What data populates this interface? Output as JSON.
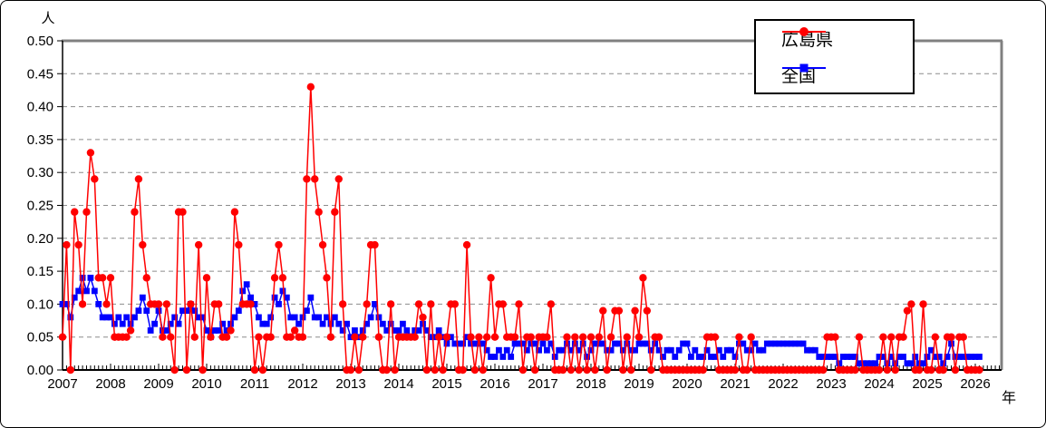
{
  "figure": {
    "y_axis_title": "人",
    "x_axis_title": "年",
    "y_ticks": [
      "0.00",
      "0.05",
      "0.10",
      "0.15",
      "0.20",
      "0.25",
      "0.30",
      "0.35",
      "0.40",
      "0.45",
      "0.50"
    ],
    "x_ticks": [
      "2007",
      "2008",
      "2009",
      "2010",
      "2011",
      "2012",
      "2013",
      "2014",
      "2015",
      "2016",
      "2017",
      "2018",
      "2019",
      "2020",
      "2021",
      "2022",
      "2023",
      "2024",
      "2025",
      "2026"
    ]
  },
  "legend": {
    "entries": [
      {
        "label": "広島県",
        "color": "#ff0000",
        "marker": "circle"
      },
      {
        "label": "全国",
        "color": "#0000ff",
        "marker": "square"
      }
    ]
  },
  "colors": {
    "hiroshima": "#ff0000",
    "national": "#0000ff",
    "grid": "#8c8c8c",
    "frame_gray": "#808080",
    "axis_black": "#000000"
  },
  "chart_data": {
    "type": "line",
    "title": "",
    "ylabel": "人",
    "xlabel": "年",
    "ylim": [
      0,
      0.5
    ],
    "y_tick_interval": 0.05,
    "grid": "horizontal-dashed",
    "legend_position": "top-right",
    "frequency": "monthly",
    "start": "2007-01",
    "end": "2026-02",
    "x_tick_years": [
      2007,
      2008,
      2009,
      2010,
      2011,
      2012,
      2013,
      2014,
      2015,
      2016,
      2017,
      2018,
      2019,
      2020,
      2021,
      2022,
      2023,
      2024,
      2025,
      2026
    ],
    "series": [
      {
        "name": "広島県",
        "color": "#ff0000",
        "marker": "circle",
        "values": [
          0.05,
          0.19,
          0.0,
          0.24,
          0.19,
          0.1,
          0.24,
          0.33,
          0.29,
          0.14,
          0.14,
          0.1,
          0.14,
          0.05,
          0.05,
          0.05,
          0.05,
          0.06,
          0.24,
          0.29,
          0.19,
          0.14,
          0.1,
          0.1,
          0.1,
          0.05,
          0.1,
          0.05,
          0.0,
          0.24,
          0.24,
          0.0,
          0.1,
          0.05,
          0.19,
          0.0,
          0.14,
          0.05,
          0.1,
          0.1,
          0.05,
          0.05,
          0.06,
          0.24,
          0.19,
          0.1,
          0.1,
          0.1,
          0.0,
          0.05,
          0.0,
          0.05,
          0.05,
          0.14,
          0.19,
          0.14,
          0.05,
          0.05,
          0.06,
          0.05,
          0.05,
          0.29,
          0.43,
          0.29,
          0.24,
          0.19,
          0.14,
          0.05,
          0.24,
          0.29,
          0.1,
          0.0,
          0.0,
          0.05,
          0.0,
          0.05,
          0.1,
          0.19,
          0.19,
          0.05,
          0.0,
          0.0,
          0.1,
          0.0,
          0.05,
          0.05,
          0.05,
          0.05,
          0.05,
          0.1,
          0.08,
          0.0,
          0.1,
          0.0,
          0.05,
          0.0,
          0.05,
          0.1,
          0.1,
          0.0,
          0.0,
          0.19,
          0.05,
          0.0,
          0.05,
          0.0,
          0.05,
          0.14,
          0.05,
          0.1,
          0.1,
          0.05,
          0.05,
          0.05,
          0.1,
          0.0,
          0.05,
          0.05,
          0.0,
          0.05,
          0.05,
          0.05,
          0.1,
          0.0,
          0.0,
          0.0,
          0.05,
          0.0,
          0.05,
          0.0,
          0.05,
          0.0,
          0.05,
          0.0,
          0.05,
          0.09,
          0.0,
          0.05,
          0.09,
          0.09,
          0.0,
          0.05,
          0.0,
          0.09,
          0.05,
          0.14,
          0.09,
          0.0,
          0.05,
          0.05,
          0.0,
          0.0,
          0.0,
          0.0,
          0.0,
          0.0,
          0.0,
          0.0,
          0.0,
          0.0,
          0.0,
          0.05,
          0.05,
          0.05,
          0.0,
          0.0,
          0.0,
          0.0,
          0.0,
          0.05,
          0.0,
          0.0,
          0.05,
          0.0,
          0.0,
          0.0,
          0.0,
          0.0,
          0.0,
          0.0,
          0.0,
          0.0,
          0.0,
          0.0,
          0.0,
          0.0,
          0.0,
          0.0,
          0.0,
          0.0,
          0.0,
          0.05,
          0.05,
          0.05,
          0.0,
          0.0,
          0.0,
          0.0,
          0.0,
          0.05,
          0.0,
          0.0,
          0.0,
          0.0,
          0.0,
          0.05,
          0.0,
          0.05,
          0.0,
          0.05,
          0.05,
          0.09,
          0.1,
          0.0,
          0.0,
          0.1,
          0.0,
          0.0,
          0.05,
          0.0,
          0.0,
          0.05,
          0.05,
          0.0,
          0.05,
          0.05,
          0.0,
          0.0,
          0.0,
          0.0
        ]
      },
      {
        "name": "全国",
        "color": "#0000ff",
        "marker": "square",
        "values": [
          0.1,
          0.1,
          0.08,
          0.11,
          0.12,
          0.14,
          0.12,
          0.14,
          0.12,
          0.1,
          0.08,
          0.08,
          0.08,
          0.07,
          0.08,
          0.07,
          0.08,
          0.07,
          0.08,
          0.09,
          0.11,
          0.09,
          0.06,
          0.07,
          0.09,
          0.06,
          0.06,
          0.07,
          0.08,
          0.07,
          0.09,
          0.09,
          0.1,
          0.09,
          0.08,
          0.08,
          0.06,
          0.05,
          0.06,
          0.06,
          0.07,
          0.06,
          0.07,
          0.08,
          0.09,
          0.12,
          0.13,
          0.11,
          0.1,
          0.08,
          0.07,
          0.07,
          0.08,
          0.11,
          0.1,
          0.12,
          0.11,
          0.08,
          0.08,
          0.07,
          0.08,
          0.09,
          0.11,
          0.08,
          0.08,
          0.07,
          0.08,
          0.07,
          0.08,
          0.07,
          0.06,
          0.07,
          0.05,
          0.06,
          0.05,
          0.06,
          0.07,
          0.08,
          0.1,
          0.08,
          0.07,
          0.06,
          0.07,
          0.06,
          0.06,
          0.07,
          0.06,
          0.05,
          0.06,
          0.06,
          0.07,
          0.06,
          0.05,
          0.05,
          0.06,
          0.05,
          0.04,
          0.05,
          0.04,
          0.04,
          0.04,
          0.05,
          0.04,
          0.04,
          0.04,
          0.04,
          0.03,
          0.02,
          0.02,
          0.03,
          0.02,
          0.03,
          0.02,
          0.04,
          0.04,
          0.04,
          0.03,
          0.04,
          0.04,
          0.03,
          0.04,
          0.03,
          0.04,
          0.02,
          0.03,
          0.03,
          0.04,
          0.03,
          0.04,
          0.03,
          0.04,
          0.02,
          0.03,
          0.04,
          0.04,
          0.04,
          0.03,
          0.03,
          0.04,
          0.04,
          0.03,
          0.04,
          0.03,
          0.03,
          0.04,
          0.04,
          0.04,
          0.03,
          0.04,
          0.03,
          0.02,
          0.03,
          0.03,
          0.02,
          0.03,
          0.04,
          0.04,
          0.02,
          0.03,
          0.02,
          0.02,
          0.03,
          0.02,
          0.02,
          0.03,
          0.02,
          0.03,
          0.03,
          0.02,
          0.04,
          0.04,
          0.03,
          0.03,
          0.04,
          0.03,
          0.03,
          0.04,
          0.04,
          0.04,
          0.04,
          0.04,
          0.04,
          0.04,
          0.04,
          0.04,
          0.04,
          0.03,
          0.03,
          0.03,
          0.02,
          0.02,
          0.02,
          0.02,
          0.02,
          0.01,
          0.02,
          0.02,
          0.02,
          0.02,
          0.01,
          0.01,
          0.01,
          0.01,
          0.01,
          0.02,
          0.02,
          0.01,
          0.02,
          0.01,
          0.02,
          0.02,
          0.01,
          0.01,
          0.02,
          0.01,
          0.01,
          0.02,
          0.03,
          0.02,
          0.02,
          0.01,
          0.02,
          0.04,
          0.02,
          0.02,
          0.02,
          0.02,
          0.02,
          0.02,
          0.02
        ]
      }
    ]
  }
}
